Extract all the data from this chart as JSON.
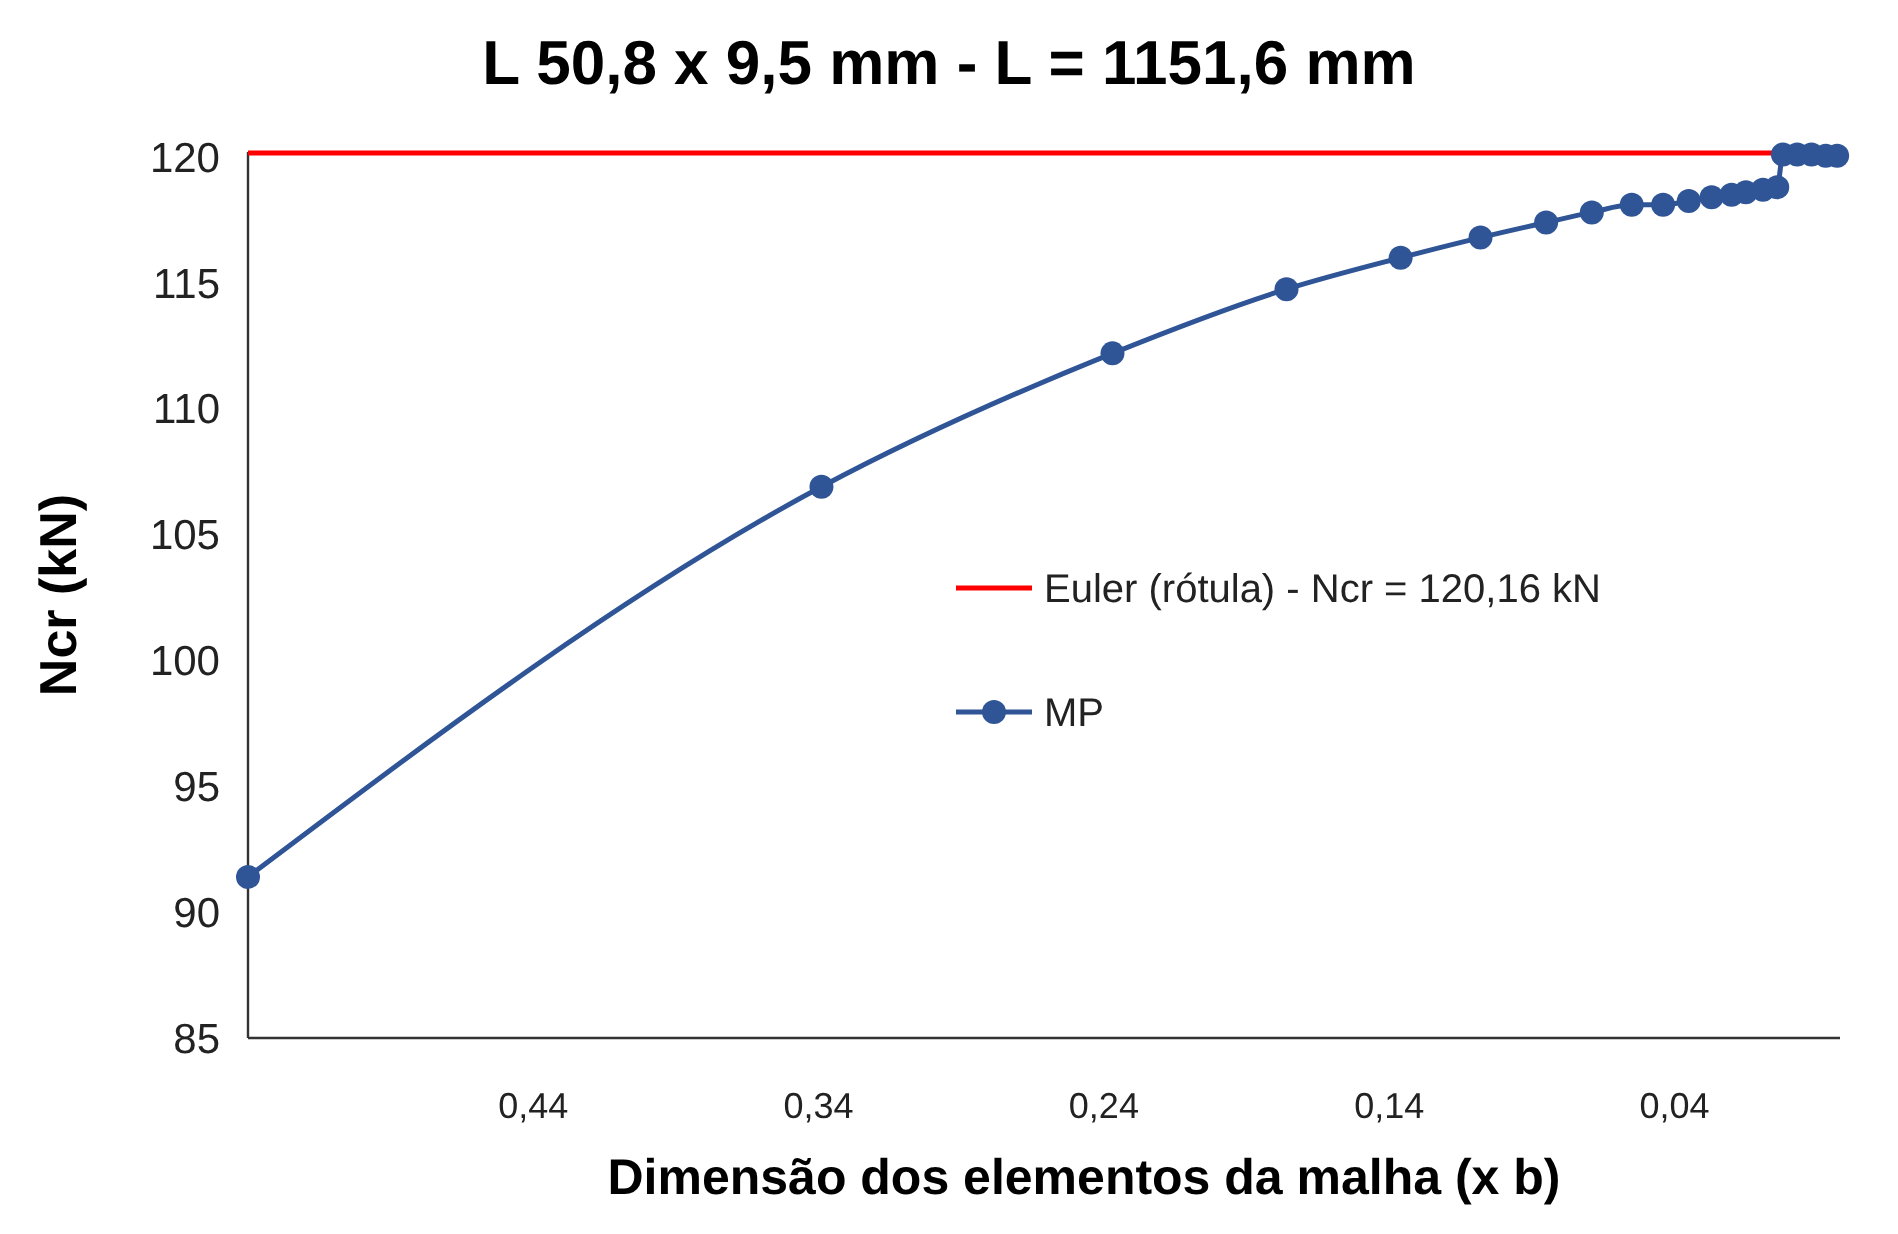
{
  "chart_data": {
    "type": "line",
    "title": "L 50,8 x 9,5 mm - L = 1151,6 mm",
    "xlabel": "Dimensão dos elementos da malha (x b)",
    "ylabel": "Ncr (kN)",
    "xlim": [
      0.54,
      -0.018
    ],
    "xticks": [
      {
        "value": 0.44,
        "label": "0,44"
      },
      {
        "value": 0.34,
        "label": "0,34"
      },
      {
        "value": 0.24,
        "label": "0,24"
      },
      {
        "value": 0.14,
        "label": "0,14"
      },
      {
        "value": 0.04,
        "label": "0,04"
      }
    ],
    "ylim": [
      85,
      120.2
    ],
    "yticks": [
      85,
      90,
      95,
      100,
      105,
      110,
      115,
      120
    ],
    "grid": false,
    "legend": "right",
    "series": [
      {
        "name": "Euler (rótula) - Ncr = 120,16 kN",
        "color": "#ff0000",
        "marker": "none",
        "x": [
          0.54,
          -0.018
        ],
        "values": [
          120.16,
          120.16
        ]
      },
      {
        "name": "MP",
        "color": "#2f5597",
        "marker": "circle",
        "x": [
          0.54,
          0.339,
          0.237,
          0.176,
          0.136,
          0.108,
          0.085,
          0.069,
          0.055,
          0.044,
          0.035,
          0.027,
          0.02,
          0.015,
          0.009,
          0.004,
          0.002,
          -0.003,
          -0.008,
          -0.013,
          -0.017
        ],
        "values": [
          91.4,
          106.9,
          112.2,
          114.75,
          116.0,
          116.8,
          117.4,
          117.8,
          118.1,
          118.1,
          118.25,
          118.4,
          118.5,
          118.6,
          118.7,
          118.8,
          120.1,
          120.1,
          120.1,
          120.05,
          120.05
        ]
      }
    ]
  }
}
